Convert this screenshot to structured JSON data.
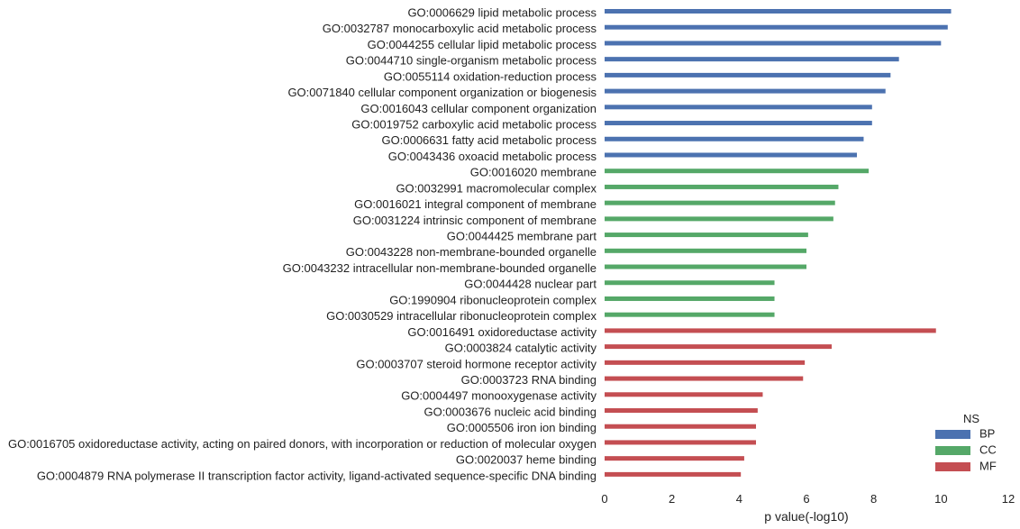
{
  "chart_data": {
    "type": "bar",
    "orientation": "horizontal",
    "title": "",
    "xlabel": "p value(-log10)",
    "ylabel": "",
    "xlim": [
      0,
      12
    ],
    "xticks": [
      "0",
      "2",
      "4",
      "6",
      "8",
      "10",
      "12"
    ],
    "grid": false,
    "legend": {
      "title": "NS",
      "placement": "bottom-right",
      "entries": [
        {
          "name": "BP",
          "color": "#4c72b0"
        },
        {
          "name": "CC",
          "color": "#55a868"
        },
        {
          "name": "MF",
          "color": "#c44e52"
        }
      ]
    },
    "categories": [
      {
        "label": "GO:0006629 lipid metabolic process",
        "ns": "BP",
        "value": 10.3
      },
      {
        "label": "GO:0032787 monocarboxylic acid metabolic process",
        "ns": "BP",
        "value": 10.2
      },
      {
        "label": "GO:0044255 cellular lipid metabolic process",
        "ns": "BP",
        "value": 10.0
      },
      {
        "label": "GO:0044710 single-organism metabolic process",
        "ns": "BP",
        "value": 8.75
      },
      {
        "label": "GO:0055114 oxidation-reduction process",
        "ns": "BP",
        "value": 8.5
      },
      {
        "label": "GO:0071840 cellular component organization or biogenesis",
        "ns": "BP",
        "value": 8.35
      },
      {
        "label": "GO:0016043 cellular component organization",
        "ns": "BP",
        "value": 7.95
      },
      {
        "label": "GO:0019752 carboxylic acid metabolic process",
        "ns": "BP",
        "value": 7.95
      },
      {
        "label": "GO:0006631 fatty acid metabolic process",
        "ns": "BP",
        "value": 7.7
      },
      {
        "label": "GO:0043436 oxoacid metabolic process",
        "ns": "BP",
        "value": 7.5
      },
      {
        "label": "GO:0016020 membrane",
        "ns": "CC",
        "value": 7.85
      },
      {
        "label": "GO:0032991 macromolecular complex",
        "ns": "CC",
        "value": 6.95
      },
      {
        "label": "GO:0016021 integral component of membrane",
        "ns": "CC",
        "value": 6.85
      },
      {
        "label": "GO:0031224 intrinsic component of membrane",
        "ns": "CC",
        "value": 6.8
      },
      {
        "label": "GO:0044425 membrane part",
        "ns": "CC",
        "value": 6.05
      },
      {
        "label": "GO:0043228 non-membrane-bounded organelle",
        "ns": "CC",
        "value": 6.0
      },
      {
        "label": "GO:0043232 intracellular non-membrane-bounded organelle",
        "ns": "CC",
        "value": 6.0
      },
      {
        "label": "GO:0044428 nuclear part",
        "ns": "CC",
        "value": 5.05
      },
      {
        "label": "GO:1990904 ribonucleoprotein complex",
        "ns": "CC",
        "value": 5.05
      },
      {
        "label": "GO:0030529 intracellular ribonucleoprotein complex",
        "ns": "CC",
        "value": 5.05
      },
      {
        "label": "GO:0016491 oxidoreductase activity",
        "ns": "MF",
        "value": 9.85
      },
      {
        "label": "GO:0003824 catalytic activity",
        "ns": "MF",
        "value": 6.75
      },
      {
        "label": "GO:0003707 steroid hormone receptor activity",
        "ns": "MF",
        "value": 5.95
      },
      {
        "label": "GO:0003723 RNA binding",
        "ns": "MF",
        "value": 5.9
      },
      {
        "label": "GO:0004497 monooxygenase activity",
        "ns": "MF",
        "value": 4.7
      },
      {
        "label": "GO:0003676 nucleic acid binding",
        "ns": "MF",
        "value": 4.55
      },
      {
        "label": "GO:0005506 iron ion binding",
        "ns": "MF",
        "value": 4.5
      },
      {
        "label": "GO:0016705 oxidoreductase activity, acting on paired donors, with incorporation or reduction of molecular oxygen",
        "ns": "MF",
        "value": 4.5
      },
      {
        "label": "GO:0020037 heme binding",
        "ns": "MF",
        "value": 4.15
      },
      {
        "label": "GO:0004879 RNA polymerase II transcription factor activity, ligand-activated sequence-specific DNA binding",
        "ns": "MF",
        "value": 4.05
      }
    ]
  }
}
